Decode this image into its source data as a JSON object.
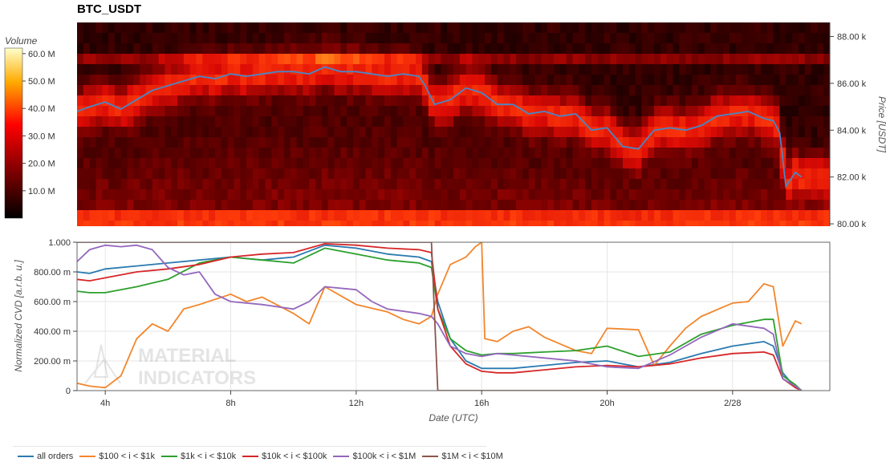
{
  "title": "BTC_USDT",
  "colorbar": {
    "title": "Volume",
    "ticks": [
      "60.0 M",
      "50.0 M",
      "40.0 M",
      "30.0 M",
      "20.0 M",
      "10.0 M"
    ],
    "tick_values": [
      60,
      50,
      40,
      30,
      20,
      10
    ],
    "max": 62
  },
  "watermark": {
    "line1": "MATERIAL",
    "line2": "INDICATORS"
  },
  "chart_data": [
    {
      "type": "heatmap",
      "title": "BTC_USDT",
      "xlabel": "",
      "ylabel": "Price [USDT]",
      "y_ticks": [
        "88.00 k",
        "86.00 k",
        "84.00 k",
        "82.00 k",
        "80.00 k"
      ],
      "y_tick_values": [
        88000,
        86000,
        84000,
        82000,
        80000
      ],
      "ylim": [
        79900,
        88600
      ],
      "x_ticks": [
        "4h",
        "8h",
        "12h",
        "16h",
        "20h",
        "2/28"
      ],
      "x_tick_values": [
        4,
        8,
        12,
        16,
        20,
        24
      ],
      "xlim": [
        3.1,
        27.1
      ],
      "price_line": {
        "color": "#4a86c8",
        "x": [
          3.1,
          3.5,
          4,
          4.5,
          5,
          5.5,
          6,
          6.5,
          7,
          7.5,
          8,
          8.5,
          9,
          9.5,
          10,
          10.5,
          11,
          11.5,
          12,
          12.5,
          13,
          13.5,
          14,
          14.2,
          14.5,
          15,
          15.5,
          16,
          16.5,
          17,
          17.5,
          18,
          18.5,
          19,
          19.5,
          20,
          20.5,
          21,
          21.5,
          22,
          22.5,
          23,
          23.5,
          24,
          24.5,
          25,
          25.3,
          25.5,
          25.7,
          26,
          26.2
        ],
        "y": [
          84800,
          85000,
          85200,
          84900,
          85300,
          85700,
          85900,
          86100,
          86300,
          86200,
          86400,
          86300,
          86400,
          86500,
          86500,
          86400,
          86700,
          86500,
          86500,
          86400,
          86300,
          86400,
          86300,
          85900,
          85100,
          85300,
          85800,
          85600,
          85100,
          85100,
          84700,
          84800,
          84600,
          84700,
          84000,
          84100,
          83300,
          83200,
          84000,
          84100,
          84000,
          84200,
          84600,
          84700,
          84800,
          84500,
          84400,
          83900,
          81600,
          82200,
          82000
        ]
      }
    },
    {
      "type": "line",
      "title": "",
      "xlabel": "Date (UTC)",
      "ylabel": "Normalized CVD [a.r.b. u.]",
      "y_ticks": [
        "1.000",
        "800.00 m",
        "600.00 m",
        "400.00 m",
        "200.00 m",
        "0"
      ],
      "y_tick_values": [
        1.0,
        0.8,
        0.6,
        0.4,
        0.2,
        0
      ],
      "ylim": [
        0,
        1.0
      ],
      "x_ticks": [
        "4h",
        "8h",
        "12h",
        "16h",
        "20h",
        "2/28"
      ],
      "x_tick_values": [
        4,
        8,
        12,
        16,
        20,
        24
      ],
      "xlim": [
        3.1,
        27.1
      ],
      "legend": "bottom",
      "grid": true,
      "series": [
        {
          "name": "all orders",
          "color": "#2a7ab0",
          "x": [
            3.1,
            3.5,
            4,
            5,
            6,
            7,
            8,
            9,
            10,
            11,
            12,
            13,
            14,
            14.4,
            14.6,
            15,
            15.5,
            16,
            16.5,
            17,
            18,
            19,
            20,
            21,
            22,
            23,
            24,
            25,
            25.3,
            25.6,
            26,
            26.2
          ],
          "y": [
            0.8,
            0.79,
            0.82,
            0.84,
            0.86,
            0.88,
            0.9,
            0.88,
            0.9,
            0.98,
            0.96,
            0.92,
            0.9,
            0.87,
            0.6,
            0.35,
            0.2,
            0.15,
            0.15,
            0.15,
            0.17,
            0.19,
            0.2,
            0.16,
            0.19,
            0.25,
            0.3,
            0.33,
            0.3,
            0.12,
            0.02,
            0.0
          ]
        },
        {
          "name": "$100 < i < $1k",
          "color": "#f2862c",
          "x": [
            3.1,
            3.5,
            4,
            4.5,
            5,
            5.5,
            6,
            6.5,
            7,
            8,
            8.5,
            9,
            10,
            10.5,
            11,
            12,
            13,
            13.5,
            14,
            14.4,
            14.6,
            15,
            15.5,
            15.8,
            16,
            16.1,
            16.5,
            17,
            17.5,
            18,
            19,
            19.5,
            20,
            21,
            21.5,
            22,
            22.5,
            23,
            24,
            24.5,
            25,
            25.3,
            25.6,
            26,
            26.2
          ],
          "y": [
            0.05,
            0.03,
            0.02,
            0.1,
            0.35,
            0.45,
            0.4,
            0.55,
            0.58,
            0.65,
            0.6,
            0.63,
            0.52,
            0.45,
            0.7,
            0.58,
            0.53,
            0.48,
            0.45,
            0.5,
            0.65,
            0.85,
            0.9,
            0.97,
            1.0,
            0.35,
            0.33,
            0.4,
            0.43,
            0.36,
            0.27,
            0.25,
            0.42,
            0.41,
            0.17,
            0.3,
            0.42,
            0.5,
            0.59,
            0.6,
            0.72,
            0.7,
            0.3,
            0.47,
            0.45
          ]
        },
        {
          "name": "$1k < i < $10k",
          "color": "#2ca02c",
          "x": [
            3.1,
            3.5,
            4,
            5,
            6,
            7,
            8,
            9,
            10,
            11,
            12,
            13,
            14,
            14.4,
            14.6,
            15,
            15.5,
            16,
            16.5,
            17,
            18,
            19,
            20,
            21,
            22,
            23,
            24,
            25,
            25.3,
            25.6,
            26,
            26.2
          ],
          "y": [
            0.67,
            0.66,
            0.66,
            0.7,
            0.75,
            0.86,
            0.9,
            0.88,
            0.86,
            0.96,
            0.92,
            0.88,
            0.86,
            0.83,
            0.55,
            0.35,
            0.27,
            0.24,
            0.25,
            0.25,
            0.26,
            0.27,
            0.3,
            0.23,
            0.26,
            0.38,
            0.44,
            0.48,
            0.48,
            0.1,
            0.04,
            0.0
          ]
        },
        {
          "name": "$10k < i < $100k",
          "color": "#d62728",
          "x": [
            3.1,
            3.5,
            4,
            5,
            6,
            7,
            8,
            9,
            10,
            11,
            12,
            13,
            14,
            14.4,
            14.6,
            15,
            15.5,
            16,
            16.5,
            17,
            18,
            19,
            20,
            21,
            22,
            23,
            24,
            25,
            25.3,
            25.6,
            26,
            26.2
          ],
          "y": [
            0.75,
            0.74,
            0.76,
            0.8,
            0.82,
            0.85,
            0.9,
            0.92,
            0.93,
            0.99,
            0.98,
            0.96,
            0.95,
            0.93,
            0.55,
            0.3,
            0.18,
            0.13,
            0.12,
            0.12,
            0.14,
            0.16,
            0.17,
            0.16,
            0.18,
            0.22,
            0.25,
            0.26,
            0.24,
            0.08,
            0.02,
            0.0
          ]
        },
        {
          "name": "$100k < i < $1M",
          "color": "#9467bd",
          "x": [
            3.1,
            3.5,
            4,
            4.5,
            5,
            5.5,
            6,
            6.5,
            7,
            7.5,
            8,
            9,
            10,
            10.5,
            11,
            12,
            12.5,
            13,
            14,
            14.4,
            14.6,
            15,
            15.5,
            16,
            16.5,
            17,
            18,
            19,
            20,
            21,
            22,
            23,
            24,
            25,
            25.3,
            25.6,
            26,
            26.2
          ],
          "y": [
            0.87,
            0.95,
            0.98,
            0.97,
            0.98,
            0.95,
            0.83,
            0.78,
            0.8,
            0.65,
            0.6,
            0.58,
            0.55,
            0.6,
            0.7,
            0.68,
            0.6,
            0.55,
            0.52,
            0.5,
            0.45,
            0.3,
            0.25,
            0.23,
            0.25,
            0.24,
            0.22,
            0.2,
            0.16,
            0.15,
            0.24,
            0.36,
            0.45,
            0.42,
            0.38,
            0.08,
            0.03,
            0.0
          ]
        },
        {
          "name": "$1M < i < $10M",
          "color": "#8c564b",
          "x": [
            3.1,
            14.4,
            14.5,
            14.6,
            26.2
          ],
          "y": [
            1.0,
            1.0,
            0.5,
            0.0,
            0.0
          ]
        }
      ]
    }
  ]
}
